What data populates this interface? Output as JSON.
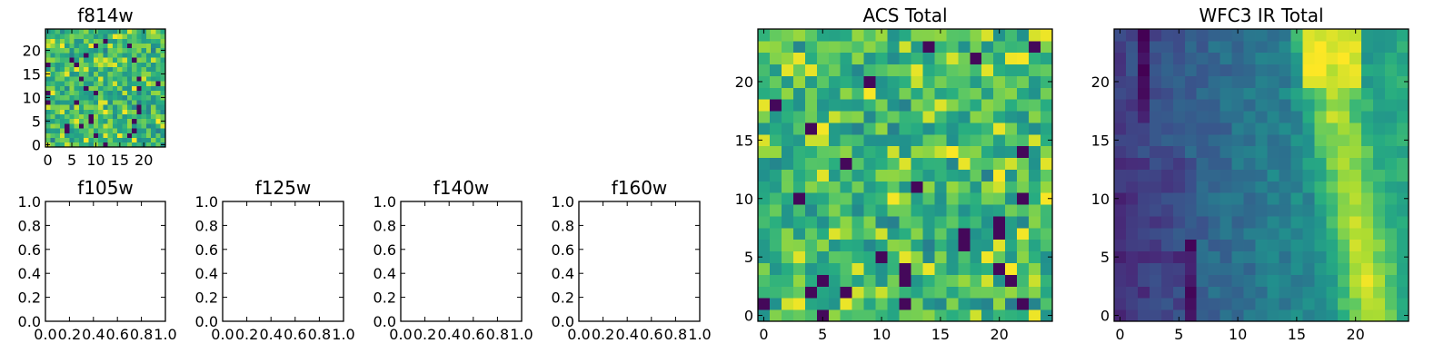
{
  "chart_data": [
    {
      "id": "f814w",
      "type": "heatmap",
      "title": "f814w",
      "colormap": "viridis",
      "grid": false,
      "xlim": [
        -0.5,
        24.5
      ],
      "ylim": [
        -0.5,
        24.5
      ],
      "xticks": [
        0,
        5,
        10,
        15,
        20
      ],
      "yticks": [
        0,
        5,
        10,
        15,
        20
      ],
      "xtick_labels": [
        "0",
        "5",
        "10",
        "15",
        "20"
      ],
      "ytick_labels": [
        "0",
        "5",
        "10",
        "15",
        "20"
      ],
      "grid_size": [
        25,
        25
      ],
      "pattern": "noise",
      "seed": 814
    },
    {
      "id": "f105w",
      "type": "empty",
      "title": "f105w",
      "xlim": [
        0,
        1
      ],
      "ylim": [
        0,
        1
      ],
      "xticks": [
        0,
        0.2,
        0.4,
        0.6,
        0.8,
        1.0
      ],
      "yticks": [
        0,
        0.2,
        0.4,
        0.6,
        0.8,
        1.0
      ],
      "xtick_labels": [
        "0.0",
        "0.2",
        "0.4",
        "0.6",
        "0.8",
        "1.0"
      ],
      "ytick_labels": [
        "0.0",
        "0.2",
        "0.4",
        "0.6",
        "0.8",
        "1.0"
      ]
    },
    {
      "id": "f125w",
      "type": "empty",
      "title": "f125w",
      "xlim": [
        0,
        1
      ],
      "ylim": [
        0,
        1
      ],
      "xticks": [
        0,
        0.2,
        0.4,
        0.6,
        0.8,
        1.0
      ],
      "yticks": [
        0,
        0.2,
        0.4,
        0.6,
        0.8,
        1.0
      ],
      "xtick_labels": [
        "0.0",
        "0.2",
        "0.4",
        "0.6",
        "0.8",
        "1.0"
      ],
      "ytick_labels": [
        "0.0",
        "0.2",
        "0.4",
        "0.6",
        "0.8",
        "1.0"
      ]
    },
    {
      "id": "f140w",
      "type": "empty",
      "title": "f140w",
      "xlim": [
        0,
        1
      ],
      "ylim": [
        0,
        1
      ],
      "xticks": [
        0,
        0.2,
        0.4,
        0.6,
        0.8,
        1.0
      ],
      "yticks": [
        0,
        0.2,
        0.4,
        0.6,
        0.8,
        1.0
      ],
      "xtick_labels": [
        "0.0",
        "0.2",
        "0.4",
        "0.6",
        "0.8",
        "1.0"
      ],
      "ytick_labels": [
        "0.0",
        "0.2",
        "0.4",
        "0.6",
        "0.8",
        "1.0"
      ]
    },
    {
      "id": "f160w",
      "type": "empty",
      "title": "f160w",
      "xlim": [
        0,
        1
      ],
      "ylim": [
        0,
        1
      ],
      "xticks": [
        0,
        0.2,
        0.4,
        0.6,
        0.8,
        1.0
      ],
      "yticks": [
        0,
        0.2,
        0.4,
        0.6,
        0.8,
        1.0
      ],
      "xtick_labels": [
        "0.0",
        "0.2",
        "0.4",
        "0.6",
        "0.8",
        "1.0"
      ],
      "ytick_labels": [
        "0.0",
        "0.2",
        "0.4",
        "0.6",
        "0.8",
        "1.0"
      ]
    },
    {
      "id": "acs-total",
      "type": "heatmap",
      "title": "ACS Total",
      "colormap": "viridis",
      "grid": false,
      "xlim": [
        -0.5,
        24.5
      ],
      "ylim": [
        -0.5,
        24.5
      ],
      "xticks": [
        0,
        5,
        10,
        15,
        20
      ],
      "yticks": [
        0,
        5,
        10,
        15,
        20
      ],
      "xtick_labels": [
        "0",
        "5",
        "10",
        "15",
        "20"
      ],
      "ytick_labels": [
        "0",
        "5",
        "10",
        "15",
        "20"
      ],
      "grid_size": [
        25,
        25
      ],
      "pattern": "noise",
      "seed": 2017
    },
    {
      "id": "wfc3-ir-total",
      "type": "heatmap",
      "title": "WFC3 IR Total",
      "colormap": "viridis",
      "grid": false,
      "xlim": [
        -0.5,
        24.5
      ],
      "ylim": [
        -0.5,
        24.5
      ],
      "xticks": [
        0,
        5,
        10,
        15,
        20
      ],
      "yticks": [
        0,
        5,
        10,
        15,
        20
      ],
      "xtick_labels": [
        "0",
        "5",
        "10",
        "15",
        "20"
      ],
      "ytick_labels": [
        "0",
        "5",
        "10",
        "15",
        "20"
      ],
      "grid_size": [
        25,
        25
      ],
      "pattern": "gradient-with-bright-ridge",
      "bright_region": {
        "x_range": [
          16,
          20
        ],
        "y_range": [
          5,
          24
        ]
      },
      "dark_region": {
        "x_range": [
          0,
          6
        ],
        "y_range": [
          0,
          24
        ]
      },
      "seed": 3
    }
  ]
}
